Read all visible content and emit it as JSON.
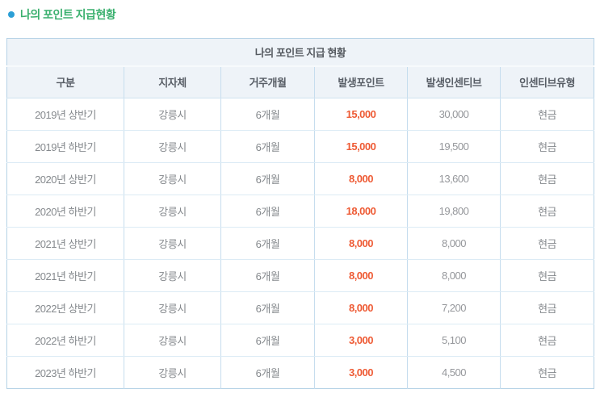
{
  "page": {
    "section_title": "나의 포인트 지급현황",
    "accent_colors": {
      "title_green": "#3ab06e",
      "bullet_blue": "#2c9fd6",
      "points_orange": "#ee5b35",
      "table_border_blue": "#b5d2e6",
      "header_bg": "#eef3f8"
    }
  },
  "table": {
    "caption": "나의 포인트 지급 현황",
    "columns": [
      {
        "key": "period",
        "label": "구분"
      },
      {
        "key": "municipality",
        "label": "지자체"
      },
      {
        "key": "residence_months",
        "label": "거주개월"
      },
      {
        "key": "points",
        "label": "발생포인트"
      },
      {
        "key": "incentive",
        "label": "발생인센티브"
      },
      {
        "key": "incentive_type",
        "label": "인센티브유형"
      }
    ],
    "rows": [
      [
        "2019년 상반기",
        "강릉시",
        "6개월",
        "15,000",
        "30,000",
        "현금"
      ],
      [
        "2019년 하반기",
        "강릉시",
        "6개월",
        "15,000",
        "19,500",
        "현금"
      ],
      [
        "2020년 상반기",
        "강릉시",
        "6개월",
        "8,000",
        "13,600",
        "현금"
      ],
      [
        "2020년 하반기",
        "강릉시",
        "6개월",
        "18,000",
        "19,800",
        "현금"
      ],
      [
        "2021년 상반기",
        "강릉시",
        "6개월",
        "8,000",
        "8,000",
        "현금"
      ],
      [
        "2021년 하반기",
        "강릉시",
        "6개월",
        "8,000",
        "8,000",
        "현금"
      ],
      [
        "2022년 상반기",
        "강릉시",
        "6개월",
        "8,000",
        "7,200",
        "현금"
      ],
      [
        "2022년 하반기",
        "강릉시",
        "6개월",
        "3,000",
        "5,100",
        "현금"
      ],
      [
        "2023년 하반기",
        "강릉시",
        "6개월",
        "3,000",
        "4,500",
        "현금"
      ]
    ]
  }
}
